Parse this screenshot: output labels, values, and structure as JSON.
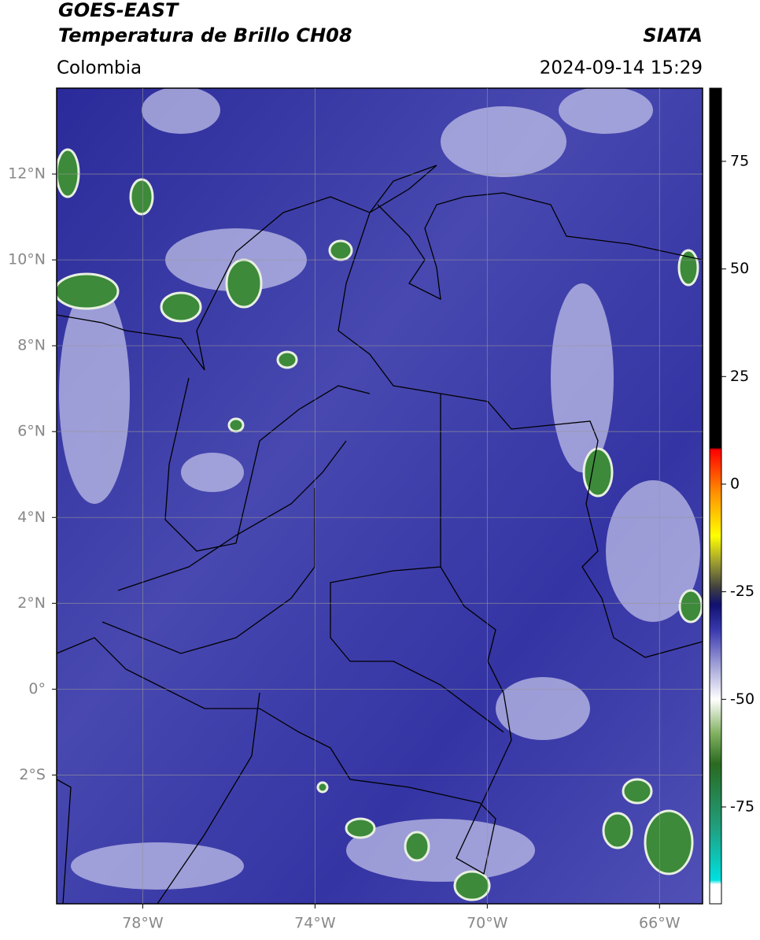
{
  "header": {
    "title_line1": "GOES-EAST",
    "title_line2": "Temperatura de Brillo CH08",
    "region": "Colombia",
    "source": "SIATA",
    "datetime": "2024-09-14 15:29"
  },
  "map": {
    "xlim": [
      -80,
      -65
    ],
    "ylim": [
      -5,
      14
    ],
    "grid": true,
    "xticks": [
      {
        "value": -78,
        "label": "78°W"
      },
      {
        "value": -74,
        "label": "74°W"
      },
      {
        "value": -70,
        "label": "70°W"
      },
      {
        "value": -66,
        "label": "66°W"
      }
    ],
    "yticks": [
      {
        "value": 12,
        "label": "12°N"
      },
      {
        "value": 10,
        "label": "10°N"
      },
      {
        "value": 8,
        "label": "8°N"
      },
      {
        "value": 6,
        "label": "6°N"
      },
      {
        "value": 4,
        "label": "4°N"
      },
      {
        "value": 2,
        "label": "2°N"
      },
      {
        "value": 0,
        "label": "0°"
      },
      {
        "value": -2,
        "label": "2°S"
      }
    ]
  },
  "colorbar": {
    "lim": [
      -97.5,
      92
    ],
    "ticks": [
      75,
      50,
      25,
      0,
      -25,
      -50,
      -75
    ],
    "colormap": [
      {
        "value": -97.5,
        "color": "#ffffff"
      },
      {
        "value": -93,
        "color": "#ffffff"
      },
      {
        "value": -92,
        "color": "#00e0e0"
      },
      {
        "value": -80,
        "color": "#20a080"
      },
      {
        "value": -65,
        "color": "#2a6a20"
      },
      {
        "value": -58,
        "color": "#80b060"
      },
      {
        "value": -50,
        "color": "#ffffff"
      },
      {
        "value": -42,
        "color": "#a0a0d8"
      },
      {
        "value": -34,
        "color": "#3a3ab0"
      },
      {
        "value": -28,
        "color": "#101070"
      },
      {
        "value": -24,
        "color": "#404040"
      },
      {
        "value": -18,
        "color": "#a0a030"
      },
      {
        "value": -12,
        "color": "#ffff00"
      },
      {
        "value": -2,
        "color": "#ff9000"
      },
      {
        "value": 8,
        "color": "#ff0000"
      },
      {
        "value": 8.5,
        "color": "#000000"
      },
      {
        "value": 92,
        "color": "#000000"
      }
    ]
  }
}
